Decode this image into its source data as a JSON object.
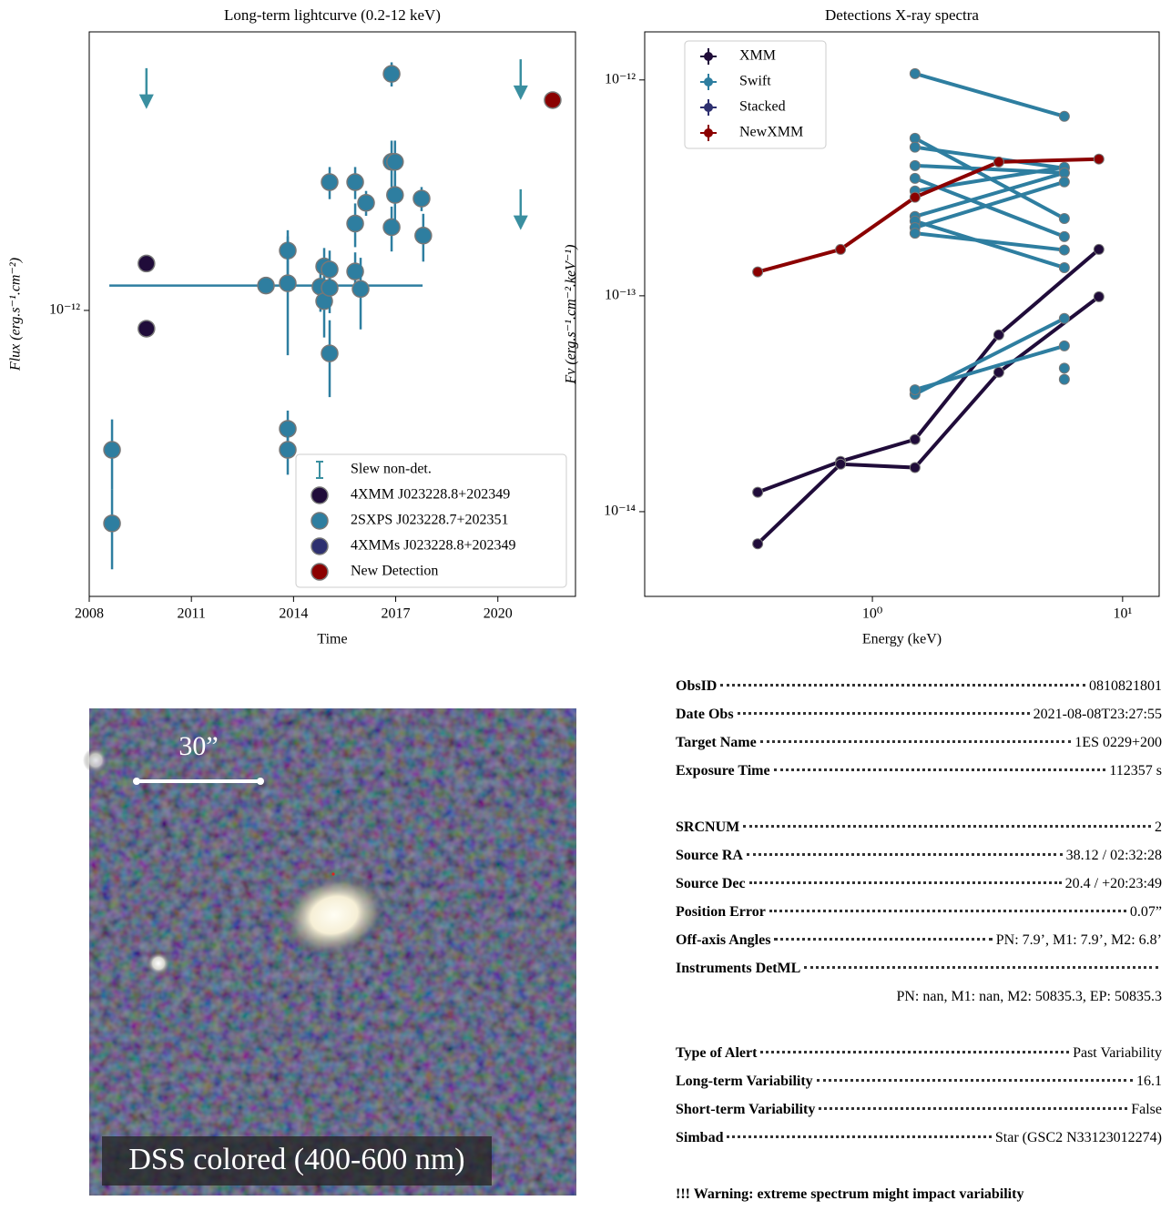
{
  "chart_data": [
    {
      "type": "scatter",
      "title": "Long-term lightcurve (0.2-12 keV)",
      "x_label": "Time",
      "y_label": "Flux (erg.s⁻¹.cm⁻²)",
      "xlim": [
        2008,
        2022.28
      ],
      "xticks": [
        2008,
        2011,
        2014,
        2017,
        2020
      ],
      "ylim": [
        1.23e-13,
        7.7e-12
      ],
      "yticks": [
        {
          "value": 1e-12,
          "label": "10⁻¹²"
        }
      ],
      "log_y": true,
      "legend": "lower right",
      "series": [
        {
          "name": "Slew non-det.",
          "color": "#3a8fa0",
          "upper_limit": true,
          "x": [
            2009.68,
            2020.67,
            2020.67
          ],
          "values": [
            5.9e-12,
            6.3e-12,
            2.43e-12
          ]
        },
        {
          "name": "4XMM J023228.8+202349",
          "color": "#200c3a",
          "x": [
            2009.68,
            2009.68
          ],
          "values": [
            1.41e-12,
            8.75e-13
          ]
        },
        {
          "name": "2SXPS J023228.7+202351",
          "color": "#2e7ea0",
          "x": [
            2008.67,
            2008.67,
            2013.19,
            2013.83,
            2013.83,
            2013.83,
            2013.83,
            2014.79,
            2014.9,
            2014.9,
            2015.06,
            2015.06,
            2015.06,
            2015.06,
            2015.81,
            2015.81,
            2015.81,
            2015.97,
            2016.13,
            2016.88,
            2016.88,
            2016.98,
            2016.88,
            2016.98,
            2017.76,
            2017.81
          ],
          "values": [
            3.6e-13,
            2.1e-13,
            1.2e-12,
            1.55e-12,
            1.22e-12,
            4.2e-13,
            3.6e-13,
            1.19e-12,
            1.07e-12,
            1.38e-12,
            7.3e-13,
            1.18e-12,
            1.35e-12,
            2.56e-12,
            2.56e-12,
            1.89e-12,
            1.33e-12,
            1.17e-12,
            2.2e-12,
            5.66e-12,
            2.97e-12,
            2.97e-12,
            1.84e-12,
            2.33e-12,
            2.27e-12,
            1.73e-12
          ],
          "errors": [
            9e-14,
            6e-14,
            null,
            2.5e-13,
            5e-13,
            6e-14,
            6e-14,
            2e-13,
            2.5e-13,
            2e-13,
            2e-13,
            2e-13,
            2e-13,
            3e-13,
            3e-13,
            3e-13,
            2e-13,
            3e-13,
            2e-13,
            5e-13,
            5e-13,
            5e-13,
            3e-13,
            4e-13,
            2e-13,
            3e-13
          ],
          "xerrors": [
            null,
            null,
            4.6,
            null,
            null,
            null,
            null,
            null,
            null,
            null,
            null,
            null,
            null,
            null,
            null,
            null,
            null,
            null,
            null,
            null,
            null,
            null,
            null,
            null,
            null,
            null
          ]
        },
        {
          "name": "4XMMs J023228.8+202349",
          "color": "#2e3070",
          "x": [],
          "values": []
        },
        {
          "name": "New Detection",
          "color": "#8b0000",
          "x": [
            2021.61
          ],
          "values": [
            4.67e-12
          ]
        }
      ]
    },
    {
      "type": "line",
      "title": "Detections X-ray spectra",
      "x_label": "Energy (keV)",
      "y_label": "Fν (erg.s⁻¹.cm⁻².keV⁻¹)",
      "xlim": [
        0.123,
        14.0
      ],
      "xticks": [
        {
          "value": 1,
          "label": "10⁰"
        },
        {
          "value": 10,
          "label": "10¹"
        }
      ],
      "log_x": true,
      "ylim": [
        4.05e-15,
        1.67e-12
      ],
      "yticks": [
        {
          "value": 1e-14,
          "label": "10⁻¹⁴"
        },
        {
          "value": 1e-13,
          "label": "10⁻¹³"
        },
        {
          "value": 1e-12,
          "label": "10⁻¹²"
        }
      ],
      "log_y": true,
      "legend": "upper left",
      "series": [
        {
          "name": "XMM",
          "color": "#200c3a",
          "x": [
            0.348,
            0.746,
            1.48,
            3.2,
            8.04
          ],
          "values": [
            [
              1.23e-14,
              1.71e-14,
              2.16e-14,
              6.59e-14,
              1.64e-13
            ],
            [
              7.1e-15,
              1.66e-14,
              1.6e-14,
              4.42e-14,
              9.9e-14
            ]
          ]
        },
        {
          "name": "Swift",
          "color": "#2e7ea0",
          "x": [
            1.48,
            5.85
          ],
          "values": [
            [
              1.07e-12,
              6.78e-13
            ],
            [
              5.37e-13,
              2.28e-13
            ],
            [
              4.88e-13,
              3.9e-13
            ],
            [
              4.01e-13,
              3.71e-13
            ],
            [
              3.5e-13,
              1.88e-13
            ],
            [
              3.06e-13,
              3.94e-13
            ],
            [
              2.33e-13,
              3.71e-13
            ],
            [
              2.22e-13,
              1.35e-13
            ],
            [
              2.07e-13,
              3.37e-13
            ],
            [
              1.95e-13,
              1.63e-13
            ],
            [
              3.5e-14,
              7.85e-14
            ],
            [
              3.67e-14,
              5.86e-14
            ],
            [
              null,
              4.62e-14
            ],
            [
              null,
              4.1e-14
            ]
          ]
        },
        {
          "name": "Stacked",
          "color": "#2e3070",
          "x": [],
          "values": []
        },
        {
          "name": "NewXMM",
          "color": "#8b0000",
          "x": [
            0.348,
            0.746,
            1.48,
            3.2,
            8.04
          ],
          "values": [
            [
              1.29e-13,
              1.64e-13,
              2.86e-13,
              4.17e-13,
              4.3e-13
            ]
          ]
        }
      ]
    }
  ],
  "image": {
    "scale_label": "30”",
    "caption": "DSS colored (400-600 nm)"
  },
  "info": {
    "sections": [
      [
        {
          "key": "ObsID",
          "value": "0810821801"
        },
        {
          "key": "Date Obs",
          "value": "2021-08-08T23:27:55"
        },
        {
          "key": "Target Name",
          "value": "1ES 0229+200"
        },
        {
          "key": "Exposure Time",
          "value": "112357 s"
        }
      ],
      [
        {
          "key": "SRCNUM",
          "value": "2"
        },
        {
          "key": "Source RA",
          "value": "38.12 / 02:32:28"
        },
        {
          "key": "Source Dec",
          "value": "20.4 / +20:23:49"
        },
        {
          "key": "Position Error",
          "value": "0.07”"
        },
        {
          "key": "Off-axis Angles",
          "value": "PN: 7.9’, M1: 7.9’, M2: 6.8’"
        },
        {
          "key": "Instruments DetML",
          "value": "PN: nan, M1: nan, M2: 50835.3, EP: 50835.3"
        }
      ],
      [
        {
          "key": "Type of Alert",
          "value": "Past Variability"
        },
        {
          "key": "Long-term Variability",
          "value": "16.1"
        },
        {
          "key": "Short-term Variability",
          "value": "False"
        },
        {
          "key": "Simbad",
          "value": "Star (GSC2 N33123012274)"
        }
      ]
    ],
    "warning": "!!! Warning: extreme spectrum might impact variability"
  }
}
